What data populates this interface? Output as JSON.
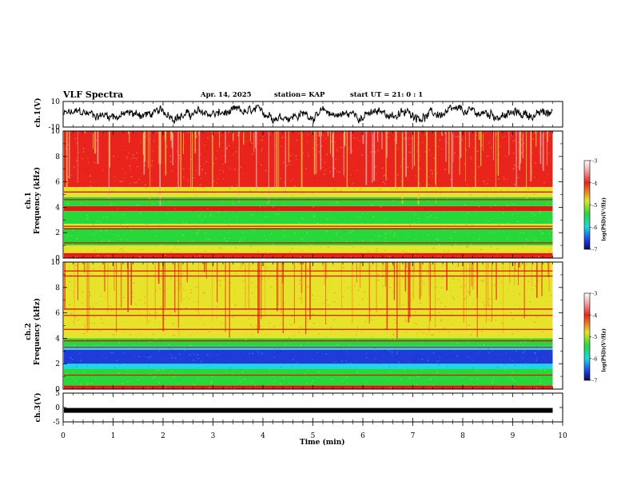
{
  "header": {
    "title": "VLF Spectra",
    "date": "Apr. 14, 2025",
    "station": "station= KAP",
    "start": "start  UT  =   21: 0  : 1"
  },
  "colors": {
    "red": "#e8241c",
    "yellow": "#e7e32a",
    "green": "#27d83b",
    "cyan": "#1ed6e6",
    "blue": "#1f3cd9",
    "trace": "#000000"
  },
  "chart_data": [
    {
      "type": "line",
      "name": "ch1-waveform",
      "ylabel": "ch.1(V)",
      "ylim": [
        -10,
        10
      ],
      "y_ticks": [
        "10",
        "-10"
      ],
      "xlim": [
        0,
        10
      ],
      "duration_min": 9.8,
      "description_mean": 0,
      "amplitude_range": [
        -7,
        7
      ]
    },
    {
      "type": "heatmap",
      "name": "ch1-spectrogram",
      "ylabel_1": "ch.1",
      "ylabel_2": "Frequency  (kHz)",
      "ylim": [
        0,
        10
      ],
      "y_ticks": [
        "0",
        "2",
        "4",
        "6",
        "8",
        "10"
      ],
      "xlim": [
        0,
        10
      ],
      "colorbar": {
        "label": "log(PSD)(V²/Hz)",
        "ticks": [
          "-3",
          "-4",
          "-5",
          "-6",
          "-7"
        ],
        "range": [
          -7,
          -3
        ]
      },
      "bands_khz": [
        {
          "from": 0.0,
          "to": 0.4,
          "level": "red"
        },
        {
          "from": 0.4,
          "to": 1.0,
          "level": "yellow"
        },
        {
          "from": 1.0,
          "to": 2.4,
          "level": "green"
        },
        {
          "from": 2.4,
          "to": 2.7,
          "level": "yellow"
        },
        {
          "from": 2.7,
          "to": 3.7,
          "level": "green"
        },
        {
          "from": 3.7,
          "to": 4.1,
          "level": "red"
        },
        {
          "from": 4.1,
          "to": 4.8,
          "level": "green"
        },
        {
          "from": 4.8,
          "to": 5.6,
          "level": "yellow"
        },
        {
          "from": 5.6,
          "to": 10.0,
          "level": "red"
        }
      ],
      "lines_khz": [
        0.3,
        1.2,
        2.3,
        2.5,
        3.8,
        3.95,
        4.6,
        5.2
      ]
    },
    {
      "type": "heatmap",
      "name": "ch2-spectrogram",
      "ylabel_1": "ch.2",
      "ylabel_2": "Frequency  (kHz)",
      "ylim": [
        0,
        10
      ],
      "y_ticks": [
        "0",
        "2",
        "4",
        "6",
        "8",
        "10"
      ],
      "xlim": [
        0,
        10
      ],
      "colorbar": {
        "label": "log(PSD)(V²/Hz)",
        "ticks": [
          "-3",
          "-4",
          "-5",
          "-6",
          "-7"
        ],
        "range": [
          -7,
          -3
        ]
      },
      "bands_khz": [
        {
          "from": 0.0,
          "to": 0.3,
          "level": "red"
        },
        {
          "from": 0.3,
          "to": 1.6,
          "level": "green"
        },
        {
          "from": 1.6,
          "to": 2.0,
          "level": "cyan"
        },
        {
          "from": 2.0,
          "to": 3.1,
          "level": "blue"
        },
        {
          "from": 3.1,
          "to": 3.4,
          "level": "cyan"
        },
        {
          "from": 3.4,
          "to": 4.0,
          "level": "green"
        },
        {
          "from": 4.0,
          "to": 5.0,
          "level": "yellow"
        },
        {
          "from": 5.0,
          "to": 10.0,
          "level": "yellow"
        }
      ],
      "lines_khz": [
        0.2,
        1.1,
        3.3,
        3.8,
        4.7,
        5.8,
        6.3,
        8.9,
        9.3
      ]
    },
    {
      "type": "line",
      "name": "ch3-waveform",
      "ylabel": "ch.3(V)",
      "ylim": [
        -5,
        5
      ],
      "y_ticks": [
        "5",
        "0",
        "-5"
      ],
      "xlim": [
        0,
        10
      ],
      "level_v": -1.0,
      "xlabel": "Time  (min)",
      "x_ticks": [
        "0",
        "1",
        "2",
        "3",
        "4",
        "5",
        "6",
        "7",
        "8",
        "9",
        "10"
      ]
    }
  ]
}
